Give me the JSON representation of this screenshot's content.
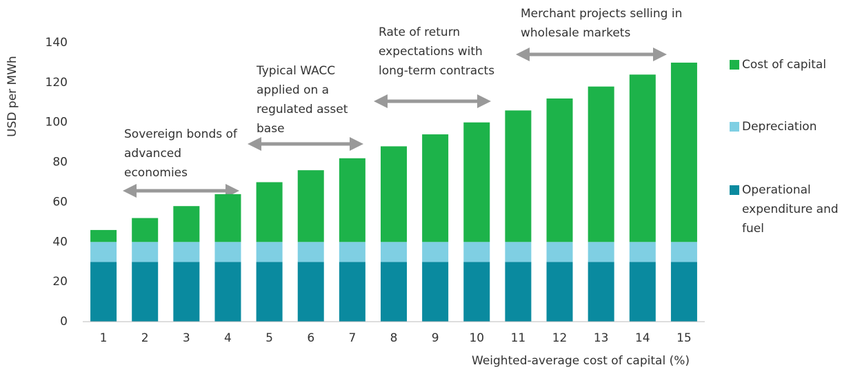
{
  "chart_data": {
    "type": "stacked-bar",
    "y_label": "USD per MWh",
    "x_label": "Weighted-average cost of capital (%)",
    "categories": [
      "1",
      "2",
      "3",
      "4",
      "5",
      "6",
      "7",
      "8",
      "9",
      "10",
      "11",
      "12",
      "13",
      "14",
      "15"
    ],
    "series": [
      {
        "name": "Operational expenditure and fuel",
        "color": "#0a8a9f",
        "values": [
          30,
          30,
          30,
          30,
          30,
          30,
          30,
          30,
          30,
          30,
          30,
          30,
          30,
          30,
          30
        ]
      },
      {
        "name": "Depreciation",
        "color": "#7fcfe3",
        "values": [
          10,
          10,
          10,
          10,
          10,
          10,
          10,
          10,
          10,
          10,
          10,
          10,
          10,
          10,
          10
        ]
      },
      {
        "name": "Cost of capital",
        "color": "#1db34a",
        "values": [
          6,
          12,
          18,
          24,
          30,
          36,
          42,
          48,
          54,
          60,
          66,
          72,
          78,
          84,
          90
        ]
      }
    ],
    "ylim": [
      0,
      140
    ],
    "yticks": [
      0,
      20,
      40,
      60,
      80,
      100,
      120,
      140
    ],
    "grid": false,
    "annotations": [
      [
        "Sovereign bonds of",
        "advanced",
        "economies"
      ],
      [
        "Typical WACC",
        "applied on a",
        "regulated asset",
        "base"
      ],
      [
        "Rate of return",
        "expectations with",
        "long-term contracts"
      ],
      [
        "Merchant projects selling in",
        "wholesale markets"
      ]
    ]
  }
}
